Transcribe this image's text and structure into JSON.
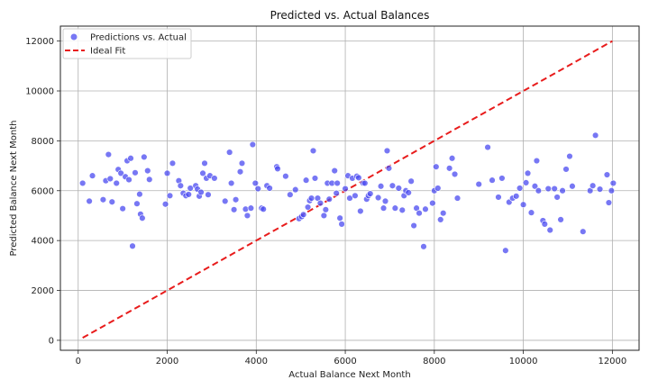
{
  "chart_data": {
    "type": "scatter",
    "title": "Predicted vs. Actual Balances",
    "xlabel": "Actual Balance Next Month",
    "ylabel": "Predicted Balance Next Month",
    "xlim": [
      -400,
      12600
    ],
    "ylim": [
      -400,
      12600
    ],
    "xticks": [
      0,
      2000,
      4000,
      6000,
      8000,
      10000,
      12000
    ],
    "yticks": [
      0,
      2000,
      4000,
      6000,
      8000,
      10000,
      12000
    ],
    "grid": true,
    "legend_position": "top-left",
    "series": [
      {
        "name": "Predictions vs. Actual",
        "kind": "scatter",
        "color": "#4a4af0",
        "x": [
          100,
          250,
          320,
          560,
          620,
          680,
          720,
          760,
          860,
          900,
          960,
          1000,
          1060,
          1100,
          1140,
          1180,
          1220,
          1280,
          1320,
          1380,
          1400,
          1440,
          1480,
          1560,
          1600,
          1960,
          2000,
          2060,
          2120,
          2260,
          2300,
          2360,
          2420,
          2480,
          2520,
          2640,
          2680,
          2720,
          2760,
          2800,
          2840,
          2880,
          2920,
          2960,
          3060,
          3300,
          3400,
          3440,
          3500,
          3540,
          3640,
          3680,
          3760,
          3800,
          3880,
          3920,
          3980,
          4040,
          4120,
          4160,
          4240,
          4300,
          4460,
          4480,
          4660,
          4760,
          4880,
          4960,
          5020,
          5060,
          5120,
          5160,
          5200,
          5240,
          5280,
          5320,
          5380,
          5440,
          5520,
          5560,
          5600,
          5640,
          5700,
          5760,
          5800,
          5820,
          5880,
          5920,
          6000,
          6060,
          6100,
          6160,
          6220,
          6260,
          6300,
          6340,
          6400,
          6440,
          6480,
          6520,
          6560,
          6740,
          6800,
          6860,
          6900,
          6940,
          6980,
          7060,
          7120,
          7200,
          7280,
          7320,
          7360,
          7420,
          7480,
          7540,
          7600,
          7660,
          7760,
          7800,
          7960,
          8000,
          8040,
          8080,
          8140,
          8200,
          8340,
          8400,
          8460,
          8520,
          9000,
          9200,
          9300,
          9440,
          9520,
          9600,
          9680,
          9760,
          9840,
          9920,
          10000,
          10060,
          10100,
          10180,
          10260,
          10300,
          10340,
          10440,
          10480,
          10560,
          10600,
          10700,
          10760,
          10840,
          10880,
          10960,
          11040,
          11100,
          11340,
          11500,
          11560,
          11620,
          11720,
          11880,
          11920,
          11980,
          12020
        ],
        "y": [
          6300,
          5580,
          6600,
          5640,
          6400,
          7450,
          6480,
          5550,
          6300,
          6850,
          6700,
          5280,
          6560,
          7200,
          6440,
          7300,
          3780,
          6720,
          5480,
          5860,
          5060,
          4900,
          7350,
          6800,
          6450,
          5460,
          6700,
          5800,
          7100,
          6400,
          6200,
          5900,
          5800,
          5850,
          6100,
          6200,
          6060,
          5780,
          5940,
          6700,
          7100,
          6500,
          5840,
          6600,
          6500,
          5580,
          7540,
          6300,
          5240,
          5640,
          6760,
          7100,
          5260,
          5000,
          5300,
          7850,
          6300,
          6080,
          5300,
          5260,
          6200,
          6100,
          6960,
          6880,
          6580,
          5840,
          6040,
          4880,
          4960,
          5040,
          6420,
          5340,
          5600,
          5700,
          7600,
          6500,
          5700,
          5500,
          5000,
          5240,
          6300,
          5660,
          6300,
          6800,
          5900,
          6300,
          4900,
          4660,
          6080,
          6600,
          5700,
          6500,
          5800,
          6580,
          6520,
          5180,
          6300,
          6300,
          5660,
          5800,
          5880,
          5720,
          6180,
          5300,
          5580,
          7600,
          6900,
          6200,
          5300,
          6100,
          5220,
          5800,
          6000,
          5920,
          6380,
          4600,
          5300,
          5100,
          3760,
          5260,
          5500,
          6000,
          6960,
          6100,
          4840,
          5100,
          6900,
          7300,
          6660,
          5700,
          6260,
          7740,
          6420,
          5740,
          6500,
          3600,
          5540,
          5700,
          5780,
          6100,
          5440,
          6320,
          6700,
          5120,
          6180,
          7200,
          6000,
          4800,
          4660,
          6080,
          4420,
          6080,
          5740,
          4840,
          6000,
          6860,
          7380,
          6180,
          4360,
          6000,
          6200,
          8220,
          6060,
          6640,
          5520,
          6000,
          6300
        ],
        "size": 7,
        "opacity": 0.75
      },
      {
        "name": "Ideal Fit",
        "kind": "line",
        "color": "#e81c1c",
        "dash": "dashed",
        "x": [
          100,
          12000
        ],
        "y": [
          100,
          12000
        ]
      }
    ]
  }
}
